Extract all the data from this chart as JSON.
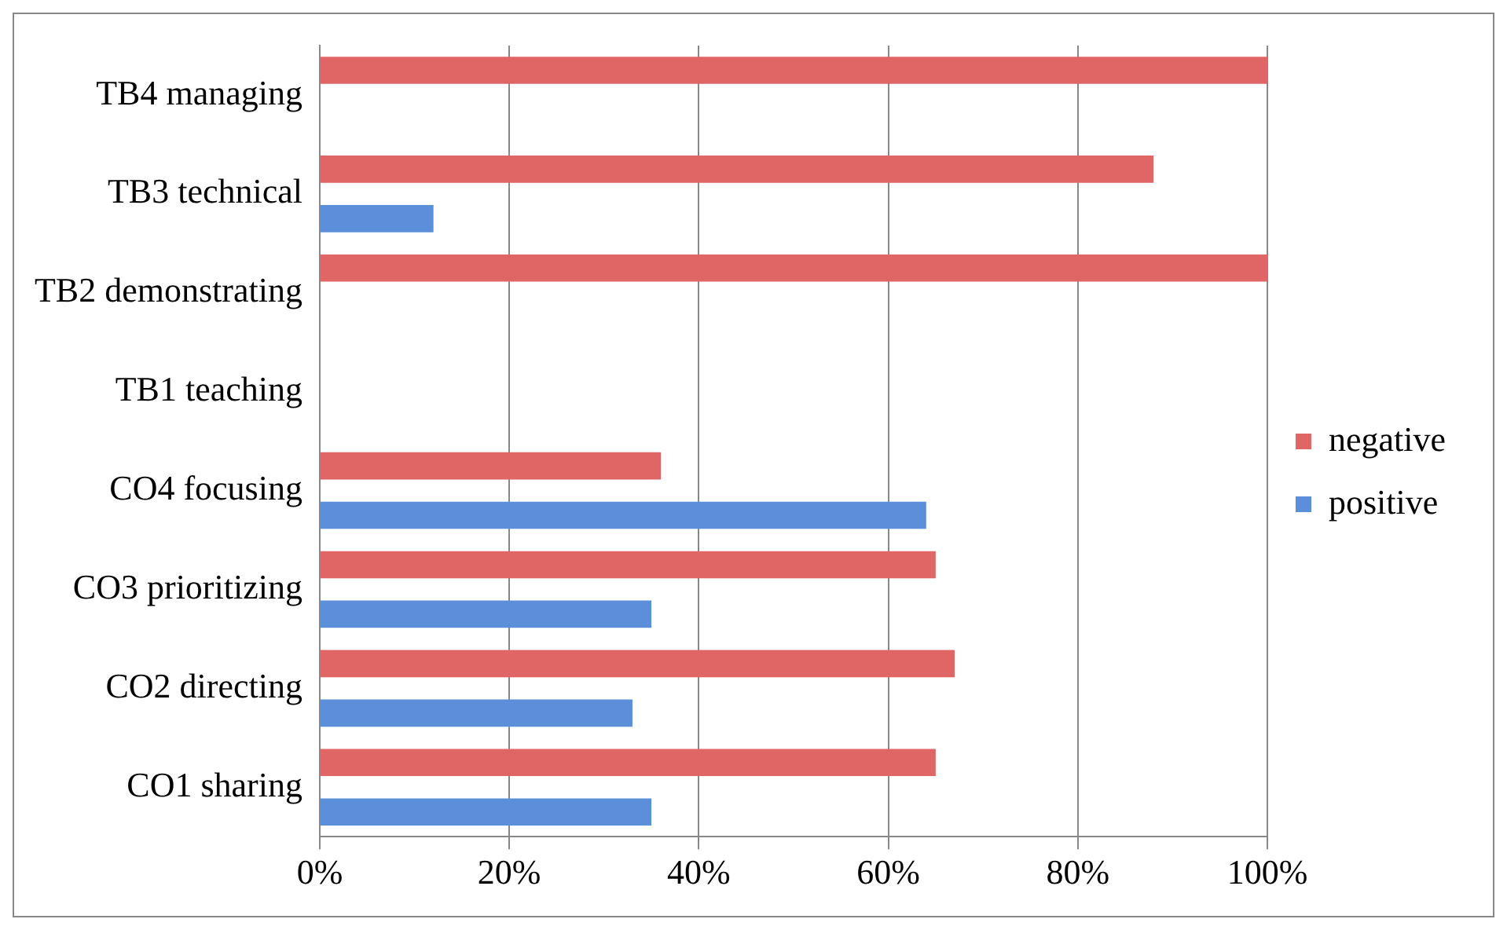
{
  "chart_data": {
    "type": "bar",
    "orientation": "horizontal",
    "categories": [
      "TB4 managing",
      "TB3 technical",
      "TB2 demonstrating",
      "TB1 teaching",
      "CO4 focusing",
      "CO3 prioritizing",
      "CO2 directing",
      "CO1 sharing"
    ],
    "series": [
      {
        "name": "negative",
        "color": "#e06666",
        "values": [
          100,
          88,
          100,
          0,
          36,
          65,
          67,
          65
        ]
      },
      {
        "name": "positive",
        "color": "#5b8fd9",
        "values": [
          0,
          12,
          0,
          0,
          64,
          35,
          33,
          35
        ]
      }
    ],
    "xlim": [
      0,
      100
    ],
    "xticks": [
      {
        "value": 0,
        "label": "0%"
      },
      {
        "value": 20,
        "label": "20%"
      },
      {
        "value": 40,
        "label": "40%"
      },
      {
        "value": 60,
        "label": "60%"
      },
      {
        "value": 80,
        "label": "80%"
      },
      {
        "value": 100,
        "label": "100%"
      }
    ],
    "grid": "x",
    "legend": "right"
  }
}
